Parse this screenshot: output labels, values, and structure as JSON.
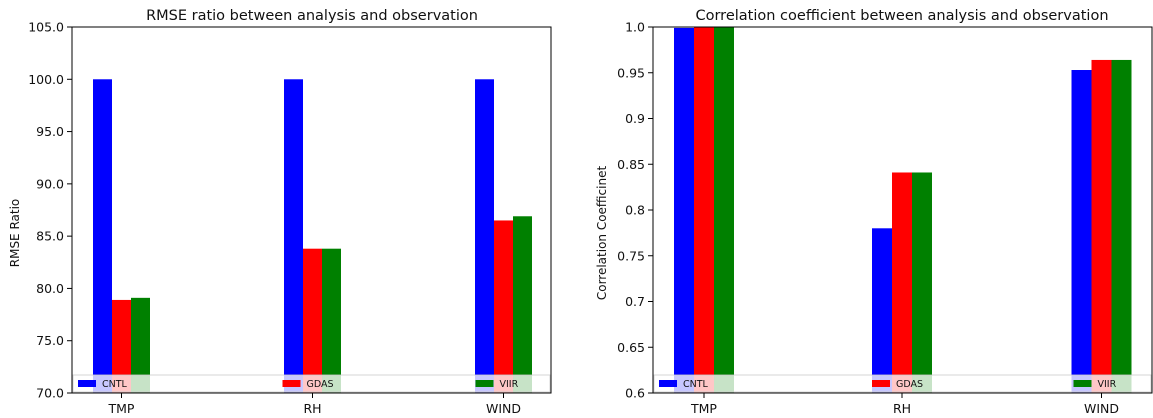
{
  "chart_data": [
    {
      "type": "bar",
      "title": "RMSE ratio between analysis and observation",
      "xlabel": "",
      "ylabel": "RMSE Ratio",
      "categories": [
        "TMP",
        "RH",
        "WIND"
      ],
      "series": [
        {
          "name": "CNTL",
          "color": "#0000ff",
          "values": [
            100.0,
            100.0,
            100.0
          ]
        },
        {
          "name": "GDAS",
          "color": "#ff0000",
          "values": [
            78.9,
            83.8,
            86.5
          ]
        },
        {
          "name": "VIIR",
          "color": "#008000",
          "values": [
            79.1,
            83.8,
            86.9
          ]
        }
      ],
      "ylim": [
        70.0,
        105.0
      ],
      "yticks": [
        "70.0",
        "75.0",
        "80.0",
        "85.0",
        "90.0",
        "95.0",
        "100.0",
        "105.0"
      ],
      "grid": false,
      "legend": "bottom, one entry under each category group"
    },
    {
      "type": "bar",
      "title": "Correlation coefficient between analysis and observation",
      "xlabel": "",
      "ylabel": "Correlation Coefficinet",
      "categories": [
        "TMP",
        "RH",
        "WIND"
      ],
      "series": [
        {
          "name": "CNTL",
          "color": "#0000ff",
          "values": [
            0.999,
            0.78,
            0.953
          ]
        },
        {
          "name": "GDAS",
          "color": "#ff0000",
          "values": [
            1.0,
            0.841,
            0.964
          ]
        },
        {
          "name": "VIIR",
          "color": "#008000",
          "values": [
            1.0,
            0.841,
            0.964
          ]
        }
      ],
      "ylim": [
        0.6,
        1.0
      ],
      "yticks": [
        "0.6",
        "0.65",
        "0.7",
        "0.75",
        "0.8",
        "0.85",
        "0.9",
        "0.95",
        "1.0"
      ],
      "grid": false,
      "legend": "bottom, one entry under each category group"
    }
  ]
}
